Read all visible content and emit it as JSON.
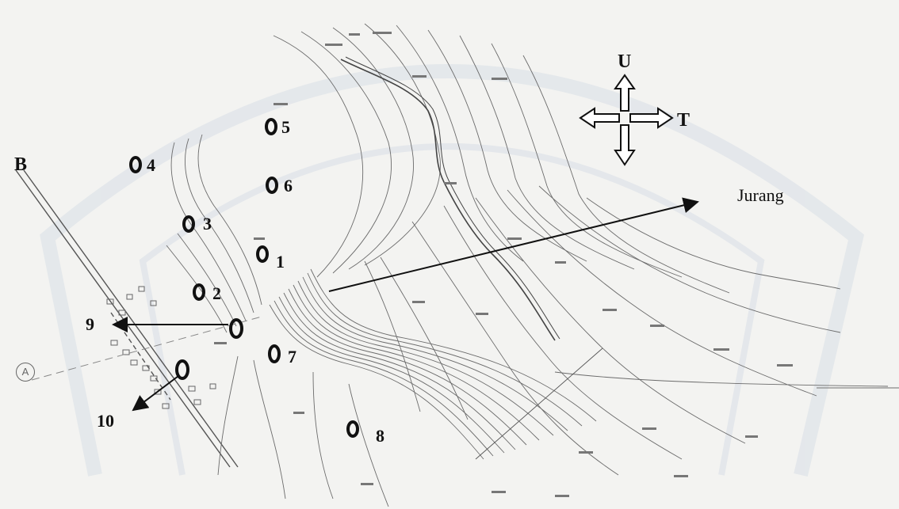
{
  "map": {
    "edge_label_west": "B",
    "compass": {
      "north": "U",
      "east": "T"
    },
    "feature_label": "Jurang",
    "marker_label": "A",
    "points": [
      {
        "id": "p1",
        "label": "1"
      },
      {
        "id": "p2",
        "label": "2"
      },
      {
        "id": "p3",
        "label": "3"
      },
      {
        "id": "p4",
        "label": "4"
      },
      {
        "id": "p5",
        "label": "5"
      },
      {
        "id": "p6",
        "label": "6"
      },
      {
        "id": "p7",
        "label": "7"
      },
      {
        "id": "p8",
        "label": "8"
      },
      {
        "id": "p9",
        "label": "9"
      },
      {
        "id": "p10",
        "label": "10"
      }
    ],
    "colors": {
      "background": "#f3f3f1",
      "contour": "#6b6b6b",
      "ink": "#111111",
      "watermark": "#c9d3e0"
    }
  }
}
